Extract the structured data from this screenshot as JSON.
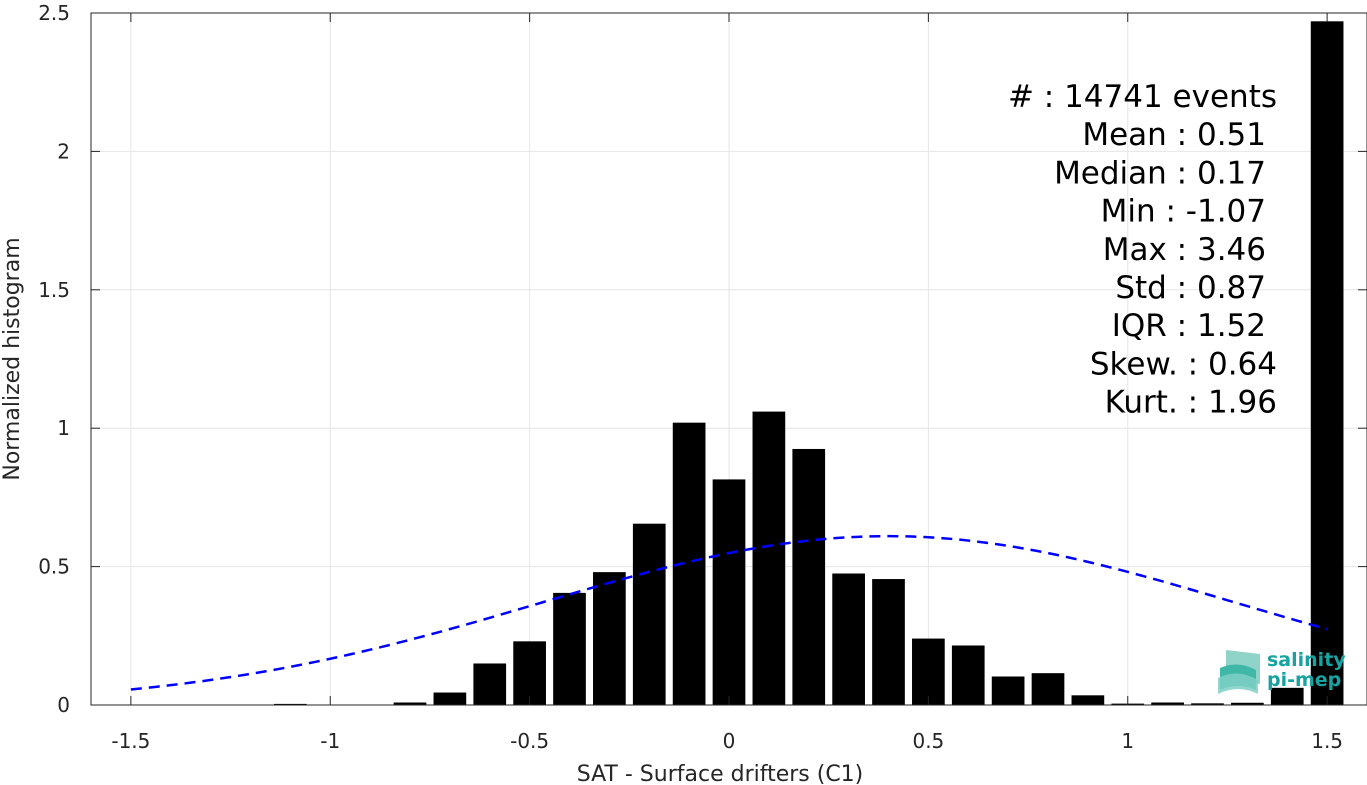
{
  "chart_data": {
    "type": "bar",
    "xlabel": "SAT - Surface drifters (C1)",
    "ylabel": "Normalized histogram",
    "xlim": [
      -1.6,
      1.6
    ],
    "ylim": [
      0,
      2.5
    ],
    "xticks": [
      -1.5,
      -1,
      -0.5,
      0,
      0.5,
      1,
      1.5
    ],
    "xtick_labels": [
      "-1.5",
      "-1",
      "-0.5",
      "0",
      "0.5",
      "1",
      "1.5"
    ],
    "yticks": [
      0,
      0.5,
      1,
      1.5,
      2,
      2.5
    ],
    "ytick_labels": [
      "0",
      "0.5",
      "1",
      "1.5",
      "2",
      "2.5"
    ],
    "grid": true,
    "bar_color": "#000000",
    "bin_width": 0.1,
    "bin_centers": [
      -1.5,
      -1.4,
      -1.3,
      -1.2,
      -1.1,
      -1.0,
      -0.9,
      -0.8,
      -0.7,
      -0.6,
      -0.5,
      -0.4,
      -0.3,
      -0.2,
      -0.1,
      0.0,
      0.1,
      0.2,
      0.3,
      0.4,
      0.5,
      0.6,
      0.7,
      0.8,
      0.9,
      1.0,
      1.1,
      1.2,
      1.3,
      1.4,
      1.5
    ],
    "values": [
      0,
      0,
      0,
      0,
      0.004,
      0.001,
      0,
      0.009,
      0.045,
      0.15,
      0.23,
      0.405,
      0.48,
      0.655,
      1.02,
      0.815,
      1.06,
      0.925,
      0.475,
      0.455,
      0.24,
      0.215,
      0.103,
      0.115,
      0.035,
      0.005,
      0.009,
      0.006,
      0.008,
      0.062,
      2.47
    ],
    "gaussian_fit": {
      "mean": 0.4,
      "std": 0.87,
      "peak": 0.61,
      "x_range": [
        -1.5,
        1.5
      ],
      "color": "#0000ff",
      "style": "dashed"
    },
    "annotations": [
      "#  : 14741 events",
      "Mean : 0.51",
      "Median : 0.17",
      "Min : -1.07",
      "Max : 3.46",
      "Std : 0.87",
      "IQR : 1.52",
      "Skew. : 0.64",
      "Kurt. : 1.96"
    ]
  },
  "logo": {
    "line1": "salinity",
    "line2": "pi-mep",
    "color": "#17a3a0"
  }
}
